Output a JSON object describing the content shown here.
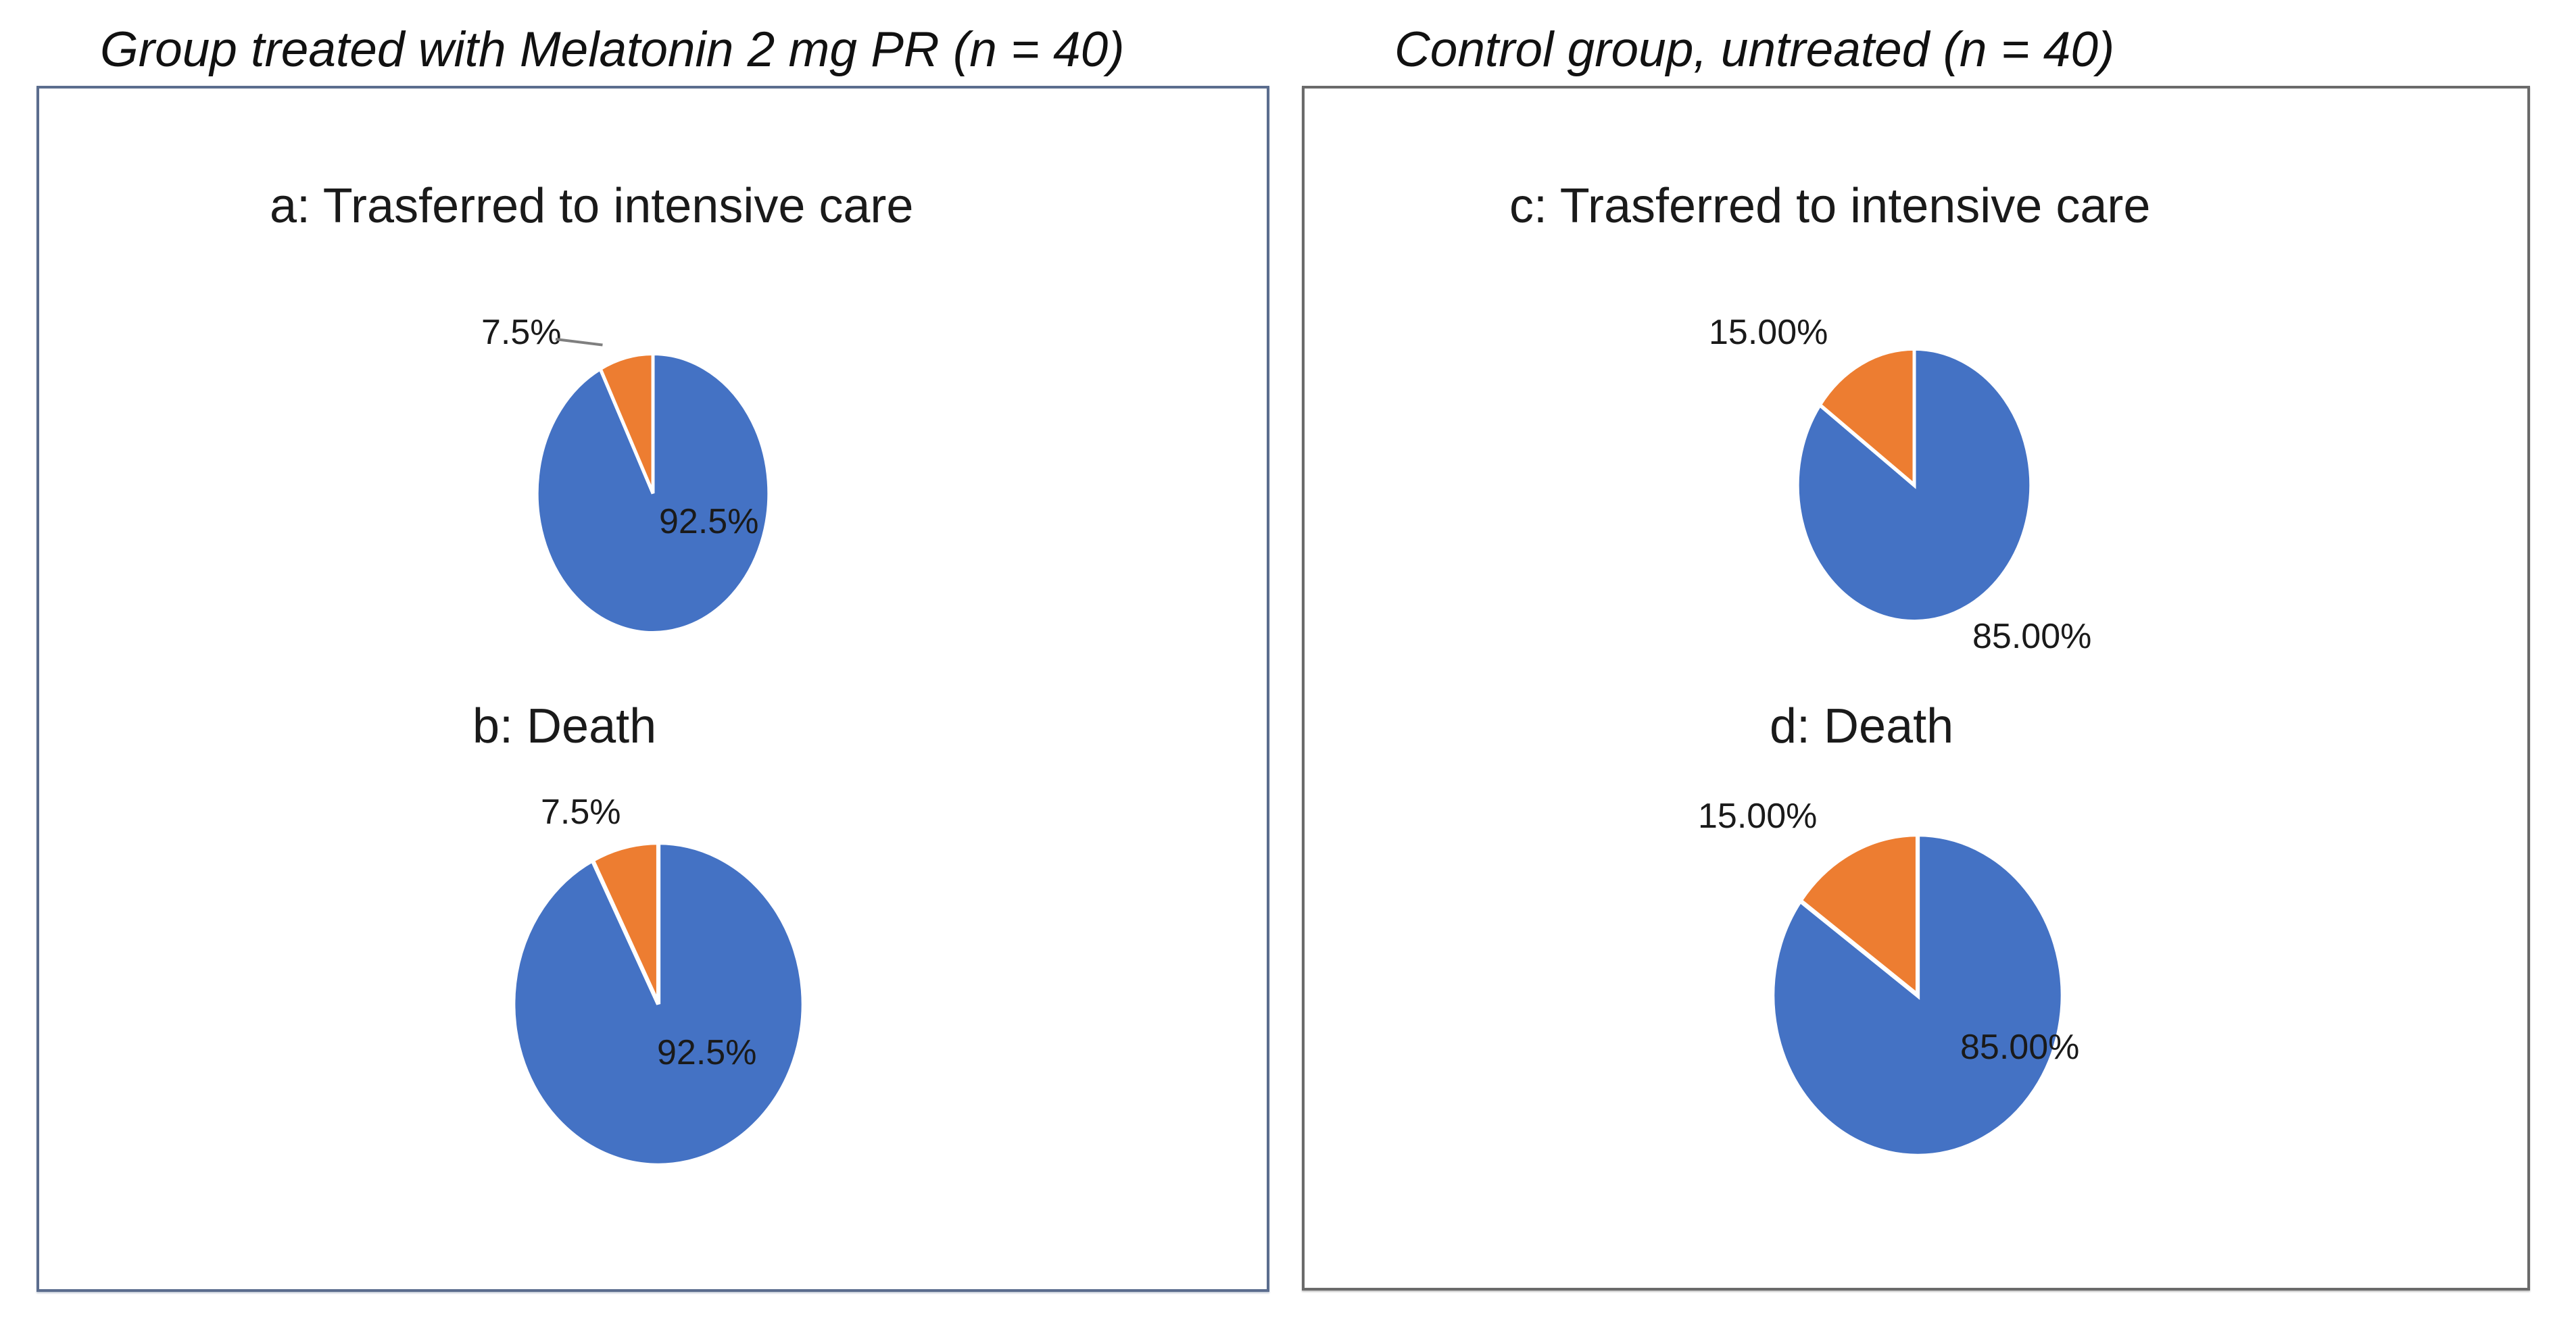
{
  "figure": {
    "left_panel_title": "Group treated with Melatonin 2 mg PR (n = 40)",
    "right_panel_title": "Control group, untreated (n = 40)"
  },
  "colors": {
    "pie_blue": "#4472C4",
    "pie_orange": "#ED7D31",
    "left_panel_border": "#5b6d8e",
    "right_panel_border": "#6a6a6a",
    "text": "#1a1a1a"
  },
  "chart_data": [
    {
      "id": "a",
      "type": "pie",
      "panel": "treated",
      "title": "a: Trasferred to intensive care",
      "start_angle_deg": 0,
      "direction": "clockwise",
      "legend": "none",
      "slices": [
        {
          "label": "92.5%",
          "value": 92.5,
          "color": "#4472C4",
          "label_position": "inside"
        },
        {
          "label": "7.5%",
          "value": 7.5,
          "color": "#ED7D31",
          "label_position": "outside-with-leader"
        }
      ]
    },
    {
      "id": "b",
      "type": "pie",
      "panel": "treated",
      "title": "b: Death",
      "start_angle_deg": 0,
      "direction": "clockwise",
      "legend": "none",
      "slices": [
        {
          "label": "92.5%",
          "value": 92.5,
          "color": "#4472C4",
          "label_position": "inside"
        },
        {
          "label": "7.5%",
          "value": 7.5,
          "color": "#ED7D31",
          "label_position": "outside"
        }
      ]
    },
    {
      "id": "c",
      "type": "pie",
      "panel": "control",
      "title": "c: Trasferred to intensive care",
      "start_angle_deg": 0,
      "direction": "clockwise",
      "legend": "none",
      "slices": [
        {
          "label": "85.00%",
          "value": 85,
          "color": "#4472C4",
          "label_position": "outside"
        },
        {
          "label": "15.00%",
          "value": 15,
          "color": "#ED7D31",
          "label_position": "outside"
        }
      ]
    },
    {
      "id": "d",
      "type": "pie",
      "panel": "control",
      "title": "d: Death",
      "start_angle_deg": 0,
      "direction": "clockwise",
      "legend": "none",
      "slices": [
        {
          "label": "85.00%",
          "value": 85,
          "color": "#4472C4",
          "label_position": "inside"
        },
        {
          "label": "15.00%",
          "value": 15,
          "color": "#ED7D31",
          "label_position": "outside"
        }
      ]
    }
  ]
}
